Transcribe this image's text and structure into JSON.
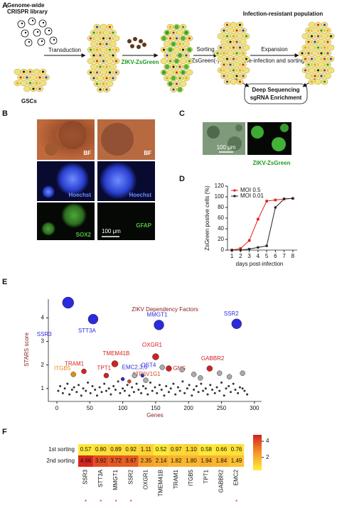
{
  "panel_a": {
    "letter": "A",
    "library": [
      "Genome-wide",
      "CRISPR library"
    ],
    "transduction": "Transduction",
    "cells": "GSCs",
    "virus": "ZIKV-ZsGreen",
    "sorting": "Sorting",
    "sorted": "ZsGreen(-)",
    "population": "Infection-resistant population",
    "expansion": "Expansion",
    "reinfection": "Re-infection and sorting",
    "sequencing": [
      "Deep Sequencing",
      "sgRNA Enrichment"
    ]
  },
  "panel_b": {
    "letter": "B",
    "labels": [
      [
        "BF",
        "BF"
      ],
      [
        "Hoechst",
        "Hoechst"
      ],
      [
        "SOX2",
        "GFAP"
      ]
    ],
    "scale_bar": "100 μm"
  },
  "panel_c": {
    "letter": "C",
    "scale_bar": "100 μm",
    "caption": "ZIKV-ZsGreen"
  },
  "chart_data": [
    {
      "type": "line",
      "letter": "D",
      "xlabel": "days post-infection",
      "ylabel": "ZsGreen postive cells (%)",
      "x": [
        1,
        2,
        3,
        4,
        5,
        6,
        7,
        8
      ],
      "series": [
        {
          "name": "MOI 0.5",
          "color": "#e02020",
          "marker": "square",
          "values": [
            0,
            3,
            18,
            58,
            92,
            94,
            96,
            97
          ]
        },
        {
          "name": "MOI 0.01",
          "color": "#222222",
          "marker": "circle",
          "values": [
            0,
            0,
            2,
            5,
            8,
            80,
            96,
            97
          ]
        }
      ],
      "xlim": [
        0.5,
        8.5
      ],
      "xticks": [
        1,
        2,
        3,
        4,
        5,
        6,
        7,
        8
      ],
      "ylim": [
        0,
        120
      ],
      "yticks": [
        0,
        20,
        40,
        60,
        80,
        100,
        120
      ],
      "legend": "upper left"
    },
    {
      "type": "scatter",
      "letter": "E",
      "title": "ZIKV Dependency Factors",
      "xlabel": "Genes",
      "ylabel": "STARS score",
      "x": [
        2,
        5,
        9,
        12,
        16,
        19,
        23,
        26,
        30,
        33,
        37,
        40,
        44,
        47,
        51,
        54,
        58,
        61,
        65,
        68,
        72,
        75,
        79,
        82,
        86,
        89,
        93,
        96,
        100,
        103,
        107,
        110,
        114,
        117,
        121,
        124,
        128,
        131,
        135,
        138,
        142,
        145,
        149,
        152,
        156,
        159,
        163,
        166,
        170,
        173,
        177,
        180,
        184,
        187,
        191,
        194,
        198,
        201,
        205,
        208,
        212,
        215,
        219,
        222,
        226,
        229,
        233,
        236,
        240,
        243,
        247,
        250,
        254,
        257,
        261,
        264,
        268,
        271,
        275,
        278,
        282,
        285,
        289
      ],
      "values": [
        0.9,
        1.1,
        0.8,
        1.0,
        1.2,
        0.75,
        0.95,
        1.05,
        0.85,
        1.15,
        0.7,
        1.0,
        0.9,
        1.25,
        0.8,
        1.1,
        0.95,
        0.7,
        1.05,
        0.85,
        1.2,
        0.9,
        1.0,
        0.75,
        1.1,
        0.95,
        1.3,
        0.8,
        1.0,
        0.9,
        1.15,
        0.7,
        1.05,
        0.85,
        1.2,
        0.95,
        0.8,
        1.1,
        1.0,
        0.75,
        1.25,
        0.9,
        1.05,
        0.8,
        1.15,
        0.95,
        0.7,
        1.1,
        0.85,
        1.0,
        1.2,
        0.75,
        1.05,
        0.9,
        1.3,
        0.8,
        1.0,
        1.15,
        0.7,
        0.95,
        1.1,
        0.85,
        1.2,
        0.9,
        1.0,
        0.75,
        1.15,
        0.95,
        0.8,
        1.05,
        0.9,
        1.25,
        0.7,
        1.0,
        1.1,
        0.85,
        1.2,
        0.95,
        0.8,
        1.05,
        1.0,
        0.9,
        0.75
      ],
      "color": "#333333",
      "points": [
        {
          "label": "SSR3",
          "x": 17,
          "y": 4.65,
          "color": "#2a2ae0",
          "size": 8
        },
        {
          "label": "STT3A",
          "x": 55,
          "y": 3.95,
          "color": "#2a2ae0",
          "size": 7
        },
        {
          "label": "MMGT1",
          "x": 155,
          "y": 3.7,
          "color": "#2a2ae0",
          "size": 7
        },
        {
          "label": "SSR2",
          "x": 273,
          "y": 3.75,
          "color": "#2a2ae0",
          "size": 7
        },
        {
          "label": "OXGR1",
          "x": 150,
          "y": 2.35,
          "color": "#d42020",
          "size": 4.5
        },
        {
          "label": "TMEM41B",
          "x": 88,
          "y": 2.05,
          "color": "#d42020",
          "size": 4.5
        },
        {
          "label": "TRAM1",
          "x": 41,
          "y": 1.73,
          "color": "#d42020",
          "size": 3.5
        },
        {
          "label": "ITGB5",
          "x": 25,
          "y": 1.6,
          "color": "#e8891c",
          "size": 3.5
        },
        {
          "label": "TPT1",
          "x": 75,
          "y": 1.55,
          "color": "#d42020",
          "size": 3.5
        },
        {
          "label": "EMC2,3,6",
          "x": 100,
          "y": 1.4,
          "color": "#2a2ae0",
          "size": 2.5
        },
        {
          "label": "OST4",
          "x": 130,
          "y": 1.55,
          "color": "#2a2ae0",
          "size": 2.5
        },
        {
          "label": "ATP6V1G1",
          "x": 110,
          "y": 1.3,
          "color": "#d04a20",
          "size": 2.5
        },
        {
          "label": "GNS",
          "x": 170,
          "y": 1.85,
          "color": "#d42020",
          "size": 4
        },
        {
          "label": "GABBR2",
          "x": 232,
          "y": 1.85,
          "color": "#d42020",
          "size": 4
        },
        {
          "x": 160,
          "y": 1.9,
          "color": "#aaaaaa",
          "size": 3.5
        },
        {
          "x": 190,
          "y": 1.8,
          "color": "#aaaaaa",
          "size": 3.5
        },
        {
          "x": 208,
          "y": 1.6,
          "color": "#aaaaaa",
          "size": 3.5
        },
        {
          "x": 247,
          "y": 1.65,
          "color": "#aaaaaa",
          "size": 3.5
        },
        {
          "x": 282,
          "y": 1.65,
          "color": "#aaaaaa",
          "size": 3.5
        },
        {
          "x": 118,
          "y": 1.55,
          "color": "#aaaaaa",
          "size": 3.5
        },
        {
          "x": 218,
          "y": 1.45,
          "color": "#aaaaaa",
          "size": 3.5
        },
        {
          "x": 262,
          "y": 1.5,
          "color": "#aaaaaa",
          "size": 3.5
        },
        {
          "x": 135,
          "y": 1.35,
          "color": "#aaaaaa",
          "size": 3.5
        }
      ],
      "xlim": [
        -13,
        311
      ],
      "xticks": [
        0,
        50,
        100,
        150,
        200,
        250,
        300
      ],
      "ylim": [
        0.45,
        4.8
      ],
      "yticks": [
        1,
        2,
        3,
        4
      ]
    },
    {
      "type": "heatmap",
      "letter": "F",
      "rows": [
        "1st sorting",
        "2nd sorting"
      ],
      "columns": [
        "SSR3",
        "STT3A",
        "MMGT1",
        "SSR2",
        "OXGR1",
        "TMEM41B",
        "TRAM1",
        "ITGB5",
        "TPT1",
        "GABBR2",
        "EMC2"
      ],
      "values": [
        [
          0.57,
          0.8,
          0.89,
          0.92,
          1.11,
          0.52,
          0.97,
          1.1,
          0.58,
          0.66,
          0.76
        ],
        [
          4.66,
          3.92,
          3.72,
          3.67,
          2.35,
          2.14,
          1.82,
          1.8,
          1.94,
          1.84,
          1.49
        ]
      ],
      "value_labels": [
        [
          "0.57",
          "0.80",
          "0.89",
          "0.92",
          "1.11",
          "0.52",
          "0.97",
          "1.10",
          "0.58",
          "0.66",
          "0.76"
        ],
        [
          "4.66",
          "3.92",
          "3.72",
          "3.67",
          "2.35",
          "2.14",
          "1.82",
          "1.80",
          "1.94",
          "1.84",
          "1.49"
        ]
      ],
      "marker": "*",
      "significant": [
        true,
        true,
        true,
        true,
        false,
        false,
        false,
        false,
        false,
        false,
        true
      ],
      "clim": [
        0.4,
        4.8
      ],
      "colorbar_ticks": [
        2,
        4
      ]
    }
  ]
}
